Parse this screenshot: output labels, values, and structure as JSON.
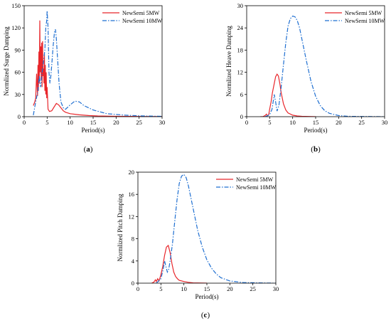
{
  "colors": {
    "series_5mw": "#e8262b",
    "series_10mw": "#1f6fd1"
  },
  "chart_data": [
    {
      "panel": "(a)",
      "type": "line",
      "xlabel": "Period(s)",
      "ylabel": "Normlized Surge Damping",
      "xlim": [
        0,
        30
      ],
      "ylim": [
        0,
        150
      ],
      "xticks": [
        0,
        5,
        10,
        15,
        20,
        25,
        30
      ],
      "yticks": [
        0,
        30,
        60,
        90,
        120,
        150
      ],
      "legend_position": "top-right",
      "series": [
        {
          "name": "NewSemi 5MW",
          "style": "solid",
          "color": "#e8262b",
          "x": [
            2.0,
            2.3,
            2.5,
            2.7,
            2.9,
            3.0,
            3.1,
            3.2,
            3.3,
            3.4,
            3.5,
            3.6,
            3.7,
            3.8,
            3.9,
            4.0,
            4.1,
            4.2,
            4.3,
            4.4,
            4.5,
            4.6,
            4.7,
            4.8,
            4.9,
            5.0,
            5.2,
            5.5,
            6.0,
            6.5,
            7.0,
            7.5,
            8.0,
            8.5,
            9.0,
            10,
            12,
            14,
            16,
            20,
            25,
            30
          ],
          "y": [
            15,
            20,
            25,
            58,
            28,
            70,
            35,
            88,
            45,
            130,
            60,
            95,
            50,
            100,
            40,
            102,
            55,
            65,
            45,
            85,
            35,
            70,
            30,
            60,
            25,
            40,
            10,
            7,
            8,
            13,
            18,
            16,
            12,
            8,
            6,
            4,
            2.5,
            1.5,
            1,
            0.5,
            0.3,
            0.2
          ]
        },
        {
          "name": "NewSemi 10MW",
          "style": "dashdot",
          "color": "#1f6fd1",
          "x": [
            2.0,
            2.5,
            3.0,
            3.3,
            3.6,
            3.9,
            4.2,
            4.5,
            4.7,
            4.9,
            5.0,
            5.2,
            5.4,
            5.6,
            5.8,
            6.0,
            6.3,
            6.6,
            6.8,
            7.0,
            7.3,
            7.6,
            8.0,
            8.5,
            9.0,
            10,
            11,
            12,
            13,
            15,
            18,
            22,
            26,
            30
          ],
          "y": [
            2,
            20,
            35,
            55,
            40,
            60,
            75,
            90,
            120,
            130,
            143,
            120,
            60,
            45,
            55,
            70,
            95,
            115,
            118,
            105,
            75,
            45,
            20,
            12,
            10,
            16,
            21,
            20,
            15,
            9,
            4,
            2,
            1,
            0.5
          ]
        }
      ]
    },
    {
      "panel": "(b)",
      "type": "line",
      "xlabel": "Period(s)",
      "ylabel": "Normlized Heave Damping",
      "xlim": [
        0,
        30
      ],
      "ylim": [
        0,
        30
      ],
      "xticks": [
        0,
        5,
        10,
        15,
        20,
        25,
        30
      ],
      "yticks": [
        0,
        6,
        12,
        18,
        24,
        30
      ],
      "legend_position": "top-right",
      "series": [
        {
          "name": "NewSemi 5MW",
          "style": "solid",
          "color": "#e8262b",
          "x": [
            3.0,
            3.5,
            4.0,
            4.3,
            4.5,
            4.8,
            5.0,
            5.3,
            5.6,
            6.0,
            6.3,
            6.6,
            6.9,
            7.2,
            7.5,
            8.0,
            8.5,
            9.0,
            10,
            11,
            12,
            15
          ],
          "y": [
            0,
            0,
            0.3,
            0.7,
            0.2,
            0.6,
            2.0,
            4.0,
            6.5,
            9.0,
            10.8,
            11.5,
            11.0,
            9.0,
            6.5,
            3.5,
            1.8,
            1.0,
            0.4,
            0.2,
            0.1,
            0
          ]
        },
        {
          "name": "NewSemi 10MW",
          "style": "dashdot",
          "color": "#1f6fd1",
          "x": [
            4.0,
            5.0,
            5.5,
            6.0,
            6.3,
            6.6,
            7.0,
            7.5,
            8.0,
            8.5,
            9.0,
            9.5,
            10.0,
            10.5,
            11.0,
            11.5,
            12.0,
            13.0,
            14.0,
            15.0,
            16.0,
            17.0,
            18.0,
            20.0,
            22.0,
            25.0,
            30.0
          ],
          "y": [
            0,
            0.5,
            2.0,
            6.0,
            4.0,
            1.5,
            3.0,
            8.0,
            14.0,
            20.0,
            24.5,
            26.5,
            27.2,
            27.0,
            26.0,
            24.0,
            21.0,
            15.0,
            9.5,
            5.5,
            3.0,
            1.6,
            0.9,
            0.3,
            0.1,
            0.05,
            0
          ]
        }
      ]
    },
    {
      "panel": "(c)",
      "type": "line",
      "xlabel": "Period(s)",
      "ylabel": "Normlized Pitch Damping",
      "xlim": [
        0,
        30
      ],
      "ylim": [
        0,
        20
      ],
      "xticks": [
        0,
        5,
        10,
        15,
        20,
        25,
        30
      ],
      "yticks": [
        0,
        4,
        8,
        12,
        16,
        20
      ],
      "legend_position": "top-right",
      "series": [
        {
          "name": "NewSemi 5MW",
          "style": "solid",
          "color": "#e8262b",
          "x": [
            3.0,
            3.5,
            3.8,
            4.0,
            4.3,
            4.6,
            5.0,
            5.4,
            5.8,
            6.2,
            6.6,
            7.0,
            7.4,
            7.8,
            8.2,
            8.6,
            9.0,
            10.0,
            11.0,
            12.0,
            15.0
          ],
          "y": [
            0,
            0.2,
            0.6,
            0.3,
            0.8,
            0.4,
            1.5,
            3.0,
            5.0,
            6.5,
            6.8,
            5.5,
            3.5,
            2.0,
            1.2,
            0.8,
            0.5,
            0.3,
            0.15,
            0.05,
            0
          ]
        },
        {
          "name": "NewSemi 10MW",
          "style": "dashdot",
          "color": "#1f6fd1",
          "x": [
            4.0,
            5.0,
            5.5,
            5.8,
            6.1,
            6.4,
            6.7,
            7.0,
            7.5,
            8.0,
            8.5,
            9.0,
            9.5,
            10.0,
            10.5,
            11.0,
            12.0,
            13.0,
            14.0,
            15.0,
            16.0,
            17.0,
            18.0,
            20.0,
            23.0,
            26.0,
            30.0
          ],
          "y": [
            0,
            0.8,
            2.5,
            4.0,
            3.0,
            2.0,
            2.5,
            4.0,
            7.0,
            11.0,
            15.0,
            18.0,
            19.3,
            19.6,
            19.0,
            17.5,
            13.5,
            9.5,
            6.5,
            4.2,
            2.7,
            1.7,
            1.0,
            0.4,
            0.1,
            0.05,
            0
          ]
        }
      ]
    }
  ]
}
